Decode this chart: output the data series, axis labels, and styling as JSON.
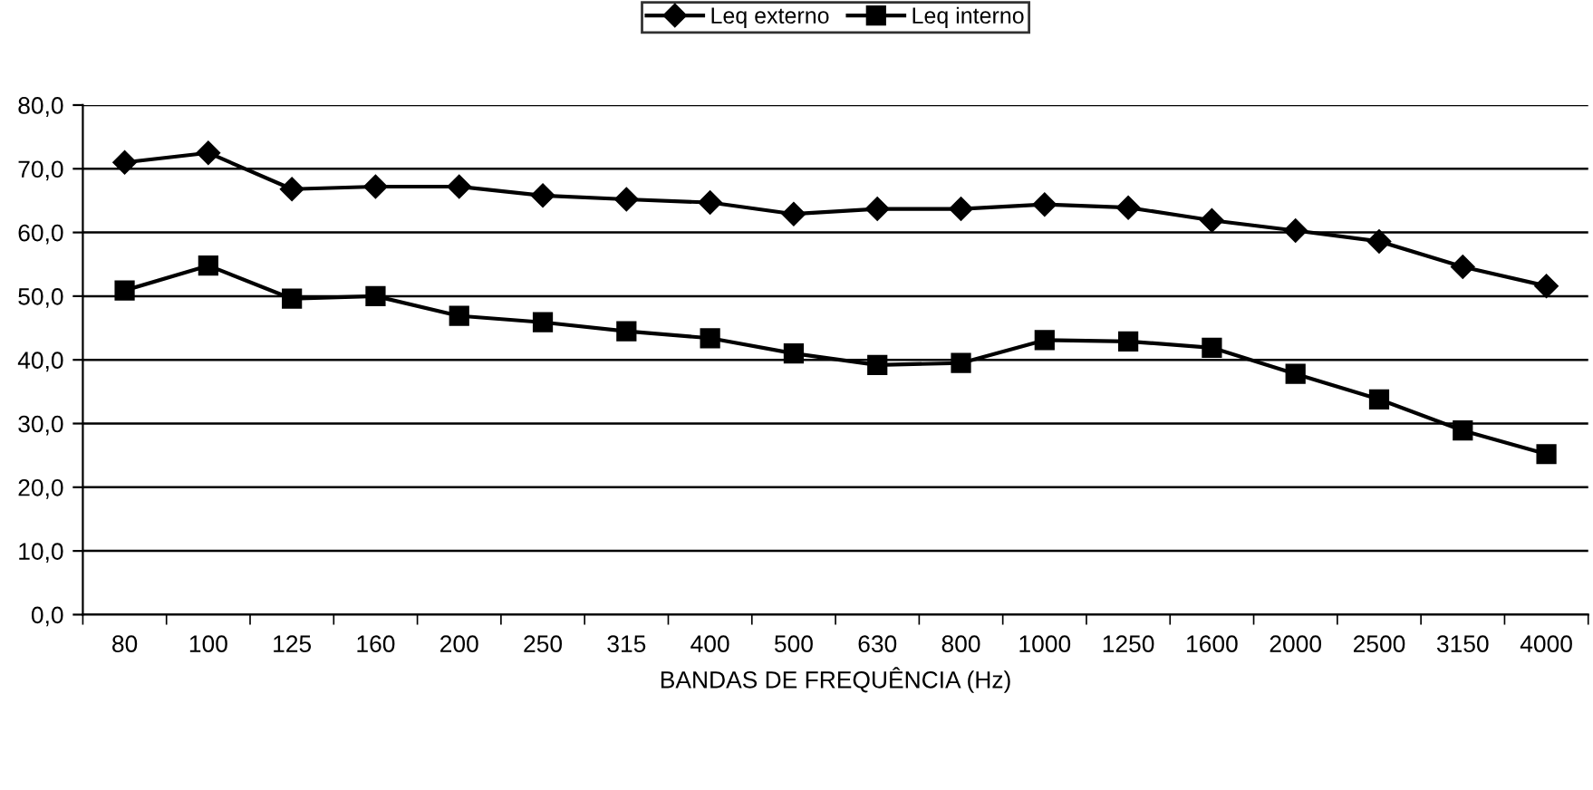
{
  "chart_data": {
    "type": "line",
    "xlabel": "BANDAS DE FREQUÊNCIA (Hz)",
    "categories": [
      "80",
      "100",
      "125",
      "160",
      "200",
      "250",
      "315",
      "400",
      "500",
      "630",
      "800",
      "1000",
      "1250",
      "1600",
      "2000",
      "2500",
      "3150",
      "4000"
    ],
    "series": [
      {
        "name": "Leq externo",
        "color": "#000000",
        "marker": "diamond",
        "values": [
          71.0,
          72.5,
          66.8,
          67.2,
          67.2,
          65.8,
          65.2,
          64.7,
          62.9,
          63.7,
          63.7,
          64.4,
          63.9,
          61.9,
          60.3,
          58.6,
          54.6,
          51.6
        ]
      },
      {
        "name": "Leq interno",
        "color": "#000000",
        "marker": "square",
        "values": [
          50.9,
          54.8,
          49.6,
          50.0,
          46.9,
          45.9,
          44.5,
          43.4,
          41.0,
          39.2,
          39.5,
          43.1,
          42.9,
          41.9,
          37.8,
          33.8,
          28.9,
          25.2
        ]
      }
    ],
    "ylim": [
      0,
      80
    ],
    "yticks": [
      {
        "value": 0,
        "label": "0,0"
      },
      {
        "value": 10,
        "label": "10,0"
      },
      {
        "value": 20,
        "label": "20,0"
      },
      {
        "value": 30,
        "label": "30,0"
      },
      {
        "value": 40,
        "label": "40,0"
      },
      {
        "value": 50,
        "label": "50,0"
      },
      {
        "value": 60,
        "label": "60,0"
      },
      {
        "value": 70,
        "label": "70,0"
      },
      {
        "value": 80,
        "label": "80,0"
      }
    ],
    "grid": "y",
    "legend": "top",
    "line_style": "solid"
  }
}
